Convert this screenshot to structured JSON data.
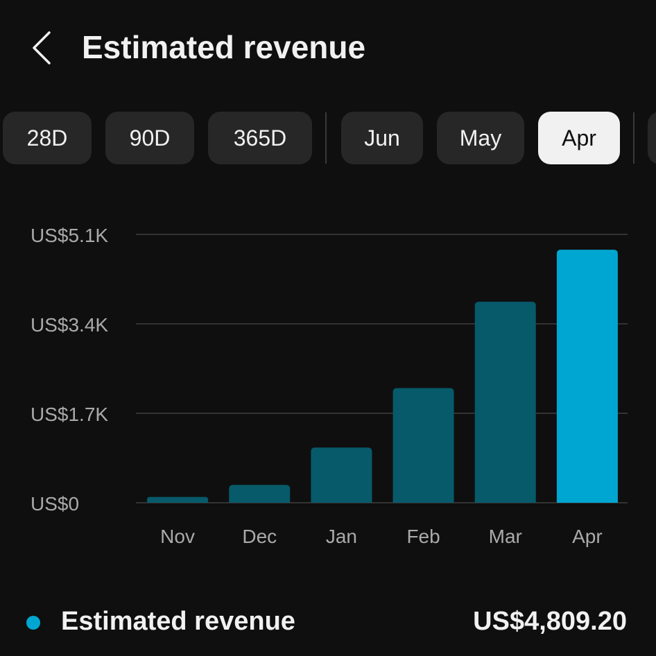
{
  "header": {
    "title": "Estimated revenue",
    "back_icon": "chevron-left-icon"
  },
  "period_chips": [
    {
      "label": "28D",
      "selected": false
    },
    {
      "label": "90D",
      "selected": false
    },
    {
      "label": "365D",
      "selected": false
    },
    {
      "label": "Jun",
      "selected": false
    },
    {
      "label": "May",
      "selected": false
    },
    {
      "label": "Apr",
      "selected": true
    }
  ],
  "colors": {
    "background": "#0f0f0f",
    "bar_default": "#075a6a",
    "bar_selected": "#00a6d2",
    "gridline": "#333333",
    "axis_text": "#aaaaaa",
    "legend_dot": "#00a6d2"
  },
  "chart_data": {
    "type": "bar",
    "categories": [
      "Nov",
      "Dec",
      "Jan",
      "Feb",
      "Mar",
      "Apr"
    ],
    "values": [
      110,
      340,
      1050,
      2180,
      3820,
      4809.2
    ],
    "ylim": [
      0,
      5100
    ],
    "yticks": [
      0,
      1700,
      3400,
      5100
    ],
    "ytick_labels": [
      "US$0",
      "US$1.7K",
      "US$3.4K",
      "US$5.1K"
    ],
    "highlighted_category": "Apr",
    "grid": true
  },
  "summary": {
    "label": "Estimated revenue",
    "value": "US$4,809.20"
  }
}
